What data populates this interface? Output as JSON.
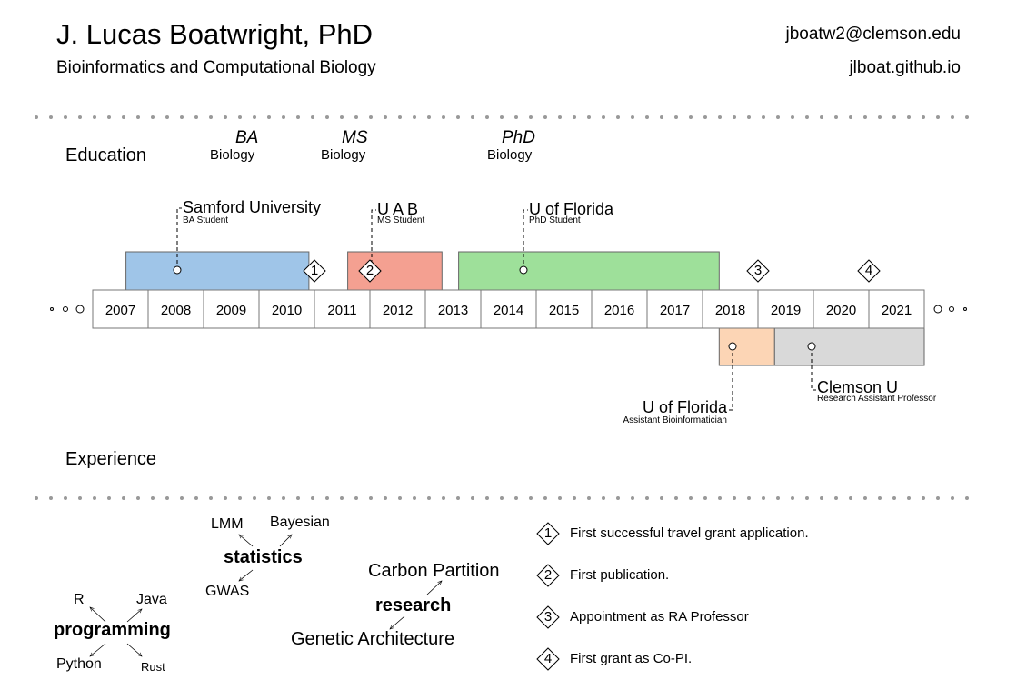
{
  "header": {
    "name": "J. Lucas Boatwright, PhD",
    "subtitle": "Bioinformatics and Computational Biology",
    "email": "jboatw2@clemson.edu",
    "website": "jlboat.github.io"
  },
  "sections": {
    "education": "Education",
    "experience": "Experience"
  },
  "degrees": [
    {
      "degree": "BA",
      "field": "Biology"
    },
    {
      "degree": "MS",
      "field": "Biology"
    },
    {
      "degree": "PhD",
      "field": "Biology"
    }
  ],
  "timeline": {
    "years": [
      "2007",
      "2008",
      "2009",
      "2010",
      "2011",
      "2012",
      "2013",
      "2014",
      "2015",
      "2016",
      "2017",
      "2018",
      "2019",
      "2020",
      "2021"
    ],
    "education": [
      {
        "institution": "Samford University",
        "role": "BA Student",
        "start": 2007.6,
        "end": 2010.9,
        "color": "#9fc5e8"
      },
      {
        "institution": "U A B",
        "role": "MS Student",
        "start": 2011.6,
        "end": 2013.3,
        "color": "#f4a091"
      },
      {
        "institution": "U of Florida",
        "role": "PhD Student",
        "start": 2013.6,
        "end": 2018.3,
        "color": "#9ee09a"
      }
    ],
    "experience": [
      {
        "institution": "U of Florida",
        "role": "Assistant Bioinformatician",
        "start": 2018.3,
        "end": 2019.3,
        "color": "#fcd5b5"
      },
      {
        "institution": "Clemson U",
        "role": "Research Assistant Professor",
        "start": 2019.3,
        "end": 2022.0,
        "color": "#d9d9d9"
      }
    ]
  },
  "milestones": [
    {
      "number": "1",
      "label": "First successful travel grant application."
    },
    {
      "number": "2",
      "label": "First publication."
    },
    {
      "number": "3",
      "label": "Appointment as RA Professor"
    },
    {
      "number": "4",
      "label": "First grant as Co-PI."
    }
  ],
  "skills": {
    "statistics": {
      "hub": "statistics",
      "items": [
        "LMM",
        "Bayesian",
        "GWAS"
      ]
    },
    "programming": {
      "hub": "programming",
      "items": [
        "R",
        "Java",
        "Python",
        "Rust"
      ]
    },
    "research": {
      "hub": "research",
      "items": [
        "Carbon Partition",
        "Genetic Architecture"
      ]
    }
  }
}
